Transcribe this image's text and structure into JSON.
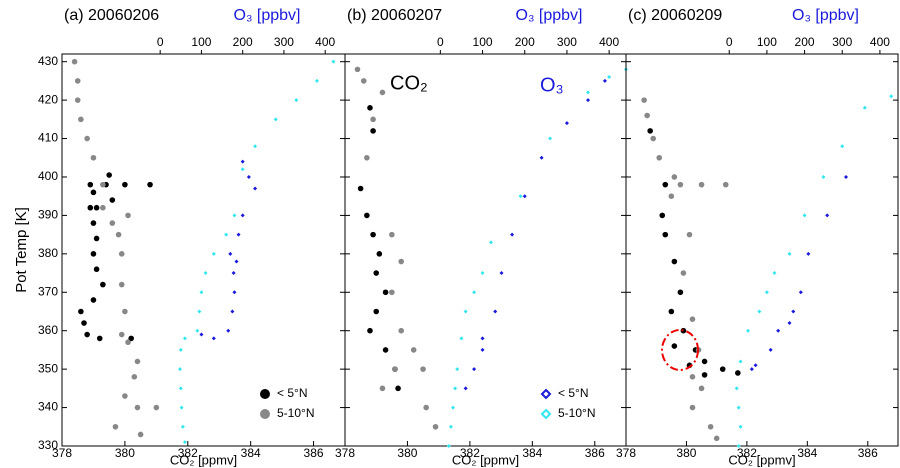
{
  "chart_data": [
    {
      "type": "scatter",
      "title": "(a) 20060206",
      "x2_label": "O₃ [ppbv]",
      "xlabel": "CO₂ [ppmv]",
      "ylabel": "Pot Temp [K]",
      "xlim": [
        378,
        387
      ],
      "xticks": [
        378,
        380,
        382,
        384,
        386
      ],
      "x2lim": [
        -238,
        448
      ],
      "x2ticks": [
        0,
        100,
        200,
        300,
        400
      ],
      "ylim": [
        330,
        432
      ],
      "yticks": [
        330,
        340,
        350,
        360,
        370,
        380,
        390,
        400,
        410,
        420,
        430
      ],
      "legend": "lower right",
      "series": [
        {
          "name": "< 5°N",
          "color": "#000000",
          "marker": "circle",
          "x": [
            380.2,
            379.2,
            378.8,
            378.7,
            378.6,
            379.0,
            379.3,
            379.1,
            379.0,
            379.1,
            379.0,
            378.9,
            379.0,
            378.9,
            379.4,
            380.0,
            380.8,
            379.5,
            379.6,
            379.1
          ],
          "values": [
            358,
            358,
            359,
            362,
            365,
            368,
            372,
            376,
            380,
            384,
            388,
            392,
            396,
            398,
            398,
            398,
            398,
            400.5,
            394,
            392
          ]
        },
        {
          "name": "5-10°N",
          "color": "#888888",
          "marker": "circle",
          "x": [
            378.4,
            378.5,
            378.5,
            378.6,
            378.8,
            379.0,
            379.3,
            379.3,
            379.6,
            379.8,
            380.1,
            379.9,
            379.9,
            380.0,
            379.9,
            380.1,
            380.4,
            380.3,
            380.0,
            380.4,
            381.0,
            379.7,
            380.5
          ],
          "values": [
            430,
            425,
            420,
            415,
            410,
            405,
            398,
            392,
            388,
            385,
            390,
            380,
            372,
            365,
            359,
            357,
            352,
            348,
            343,
            340,
            340,
            335,
            333
          ]
        },
        {
          "color": "#1a1adc",
          "marker": "diamond",
          "axis": "x2",
          "x": [
            200,
            215,
            230,
            200,
            190,
            185,
            180,
            175,
            165,
            130,
            100,
            170,
            178
          ],
          "values": [
            404,
            400,
            397,
            390,
            385,
            378,
            370,
            365,
            360,
            358,
            359,
            380,
            375
          ]
        },
        {
          "color": "#33e6f0",
          "marker": "diamond",
          "axis": "x2",
          "x": [
            420,
            380,
            330,
            280,
            230,
            200,
            180,
            160,
            130,
            110,
            100,
            95,
            90,
            60,
            50,
            48,
            50,
            52,
            55,
            60
          ],
          "values": [
            430,
            425,
            420,
            415,
            408,
            402,
            390,
            385,
            380,
            375,
            370,
            365,
            360,
            358,
            355,
            350,
            345,
            340,
            335,
            331
          ]
        }
      ]
    },
    {
      "type": "scatter",
      "title": "(b) 20060207",
      "x2_label": "O₃ [ppbv]",
      "xlabel": "CO₂ [ppmv]",
      "xlim": [
        378,
        387
      ],
      "xticks": [
        378,
        380,
        382,
        384,
        386
      ],
      "x2lim": [
        -226,
        440
      ],
      "x2ticks": [
        0,
        100,
        200,
        300,
        400
      ],
      "ylim": [
        330,
        432
      ],
      "yticks": [
        330,
        340,
        350,
        360,
        370,
        380,
        390,
        400,
        410,
        420,
        430
      ],
      "legend": "lower right",
      "annotations": [
        {
          "text": "CO₂",
          "color": "#000000"
        },
        {
          "text": "O₃",
          "color": "#1a1adc"
        }
      ],
      "series": [
        {
          "color": "#000000",
          "marker": "circle",
          "x": [
            378.8,
            378.9,
            378.5,
            378.7,
            378.9,
            379.1,
            379.0,
            379.3,
            379.0,
            378.8,
            379.3,
            379.6,
            379.7
          ],
          "values": [
            418,
            412,
            397,
            390,
            385,
            380,
            375,
            370,
            365,
            360,
            355,
            350,
            345
          ]
        },
        {
          "color": "#888888",
          "marker": "circle",
          "x": [
            378.4,
            378.6,
            379.2,
            378.9,
            378.7,
            379.5,
            379.8,
            379.5,
            379.8,
            380.2,
            380.5,
            379.6,
            379.2,
            380.6,
            380.9
          ],
          "values": [
            428,
            425,
            422,
            415,
            405,
            385,
            378,
            370,
            360,
            355,
            350,
            350,
            345,
            340,
            335
          ]
        },
        {
          "name": "< 5°N",
          "color": "#1a1adc",
          "marker": "diamond",
          "axis": "x2",
          "x": [
            390,
            350,
            300,
            240,
            200,
            170,
            145,
            130,
            100,
            80,
            60,
            100
          ],
          "values": [
            425,
            420,
            414,
            405,
            395,
            385,
            375,
            365,
            355,
            350,
            345,
            358
          ]
        },
        {
          "name": "5-10°N",
          "color": "#33e6f0",
          "marker": "diamond",
          "axis": "x2",
          "x": [
            440,
            400,
            350,
            260,
            190,
            120,
            100,
            80,
            60,
            50,
            40,
            35,
            30,
            25,
            20
          ],
          "values": [
            428,
            426,
            422,
            410,
            395,
            383,
            375,
            370,
            365,
            358,
            350,
            345,
            340,
            335,
            330
          ]
        }
      ]
    },
    {
      "type": "scatter",
      "title": "(c) 20060209",
      "x2_label": "O₃ [ppbv]",
      "xlabel": "CO₂ [ppmv]",
      "xlim": [
        378,
        387
      ],
      "xticks": [
        378,
        380,
        382,
        384,
        386
      ],
      "x2lim": [
        -274,
        448
      ],
      "x2ticks": [
        0,
        100,
        200,
        300,
        400
      ],
      "ylim": [
        330,
        432
      ],
      "yticks": [
        330,
        340,
        350,
        360,
        370,
        380,
        390,
        400,
        410,
        420,
        430
      ],
      "series": [
        {
          "color": "#000000",
          "marker": "circle",
          "x": [
            378.8,
            379.3,
            379.2,
            379.3,
            379.6,
            379.8,
            379.5,
            379.9,
            379.6,
            380.3,
            380.6,
            381.2,
            381.7,
            380.6,
            380.1
          ],
          "values": [
            412,
            398,
            390,
            385,
            378,
            370,
            365,
            360,
            356,
            355,
            352,
            350,
            349,
            348.5,
            351
          ]
        },
        {
          "color": "#888888",
          "marker": "circle",
          "x": [
            378.6,
            378.7,
            378.9,
            379.1,
            379.6,
            379.8,
            380.5,
            381.3,
            379.5,
            380.1,
            379.9,
            380.2,
            380.4,
            380.2,
            380.5,
            380.2,
            380.8,
            381.0
          ],
          "values": [
            420,
            416,
            410,
            405,
            400,
            398,
            398,
            398,
            395,
            385,
            375,
            363,
            355,
            348,
            345,
            340,
            335,
            332
          ]
        },
        {
          "color": "#1a1adc",
          "marker": "diamond",
          "axis": "x2",
          "x": [
            310,
            260,
            210,
            190,
            170,
            160,
            130,
            110,
            70,
            60
          ],
          "values": [
            400,
            390,
            380,
            370,
            365,
            362,
            360,
            355,
            351,
            350
          ]
        },
        {
          "color": "#33e6f0",
          "marker": "diamond",
          "axis": "x2",
          "x": [
            430,
            360,
            300,
            250,
            200,
            160,
            120,
            100,
            80,
            50,
            30,
            20,
            25,
            30,
            25
          ],
          "values": [
            421,
            418,
            408,
            400,
            390,
            380,
            375,
            370,
            365,
            360,
            352,
            345,
            340,
            335,
            330
          ]
        }
      ]
    }
  ]
}
